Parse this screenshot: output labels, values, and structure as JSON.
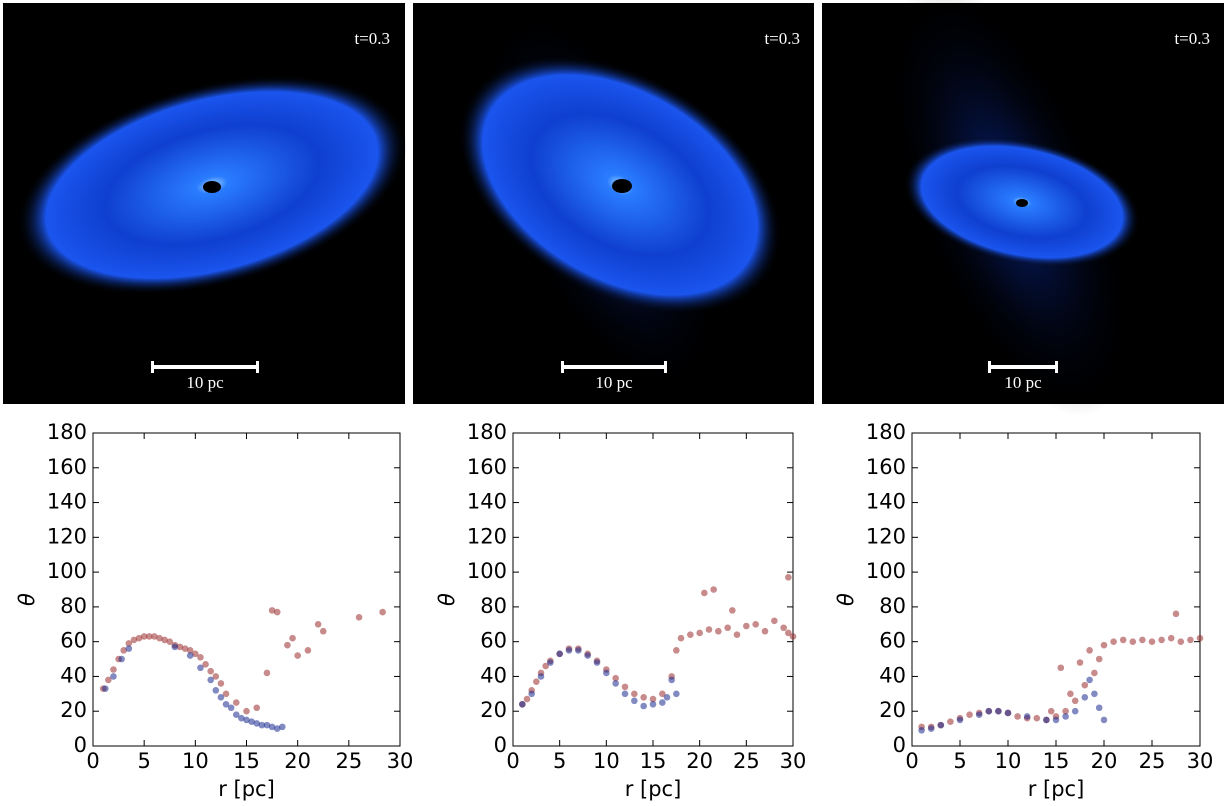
{
  "images": [
    {
      "time": "t=0.3",
      "scale": "10 pc"
    },
    {
      "time": "t=0.3",
      "scale": "10 pc"
    },
    {
      "time": "t=0.3",
      "scale": "10 pc"
    }
  ],
  "chart_data": [
    {
      "type": "scatter",
      "x_label": "r [pc]",
      "y_label": "θ",
      "xlim": [
        0,
        30
      ],
      "ylim": [
        0,
        180
      ],
      "xticks": [
        0,
        5,
        10,
        15,
        20,
        25,
        30
      ],
      "yticks": [
        0,
        20,
        40,
        60,
        80,
        100,
        120,
        140,
        160,
        180
      ],
      "series": [
        {
          "color": "#9b2b2b",
          "x": [
            1,
            1.5,
            2,
            2.5,
            3,
            3.5,
            4,
            4.5,
            5,
            5.5,
            6,
            6.5,
            7,
            7.5,
            8,
            8.5,
            9,
            9.5,
            10,
            10.5,
            11,
            11.5,
            12,
            12.5,
            13,
            14,
            15,
            16,
            17,
            17.5,
            18,
            19,
            19.5,
            20,
            21,
            22,
            22.5,
            26,
            28.3
          ],
          "values": [
            33,
            38,
            44,
            50,
            55,
            59,
            61,
            62,
            63,
            63,
            63,
            62,
            61,
            60,
            58,
            57,
            56,
            55,
            53,
            51,
            47,
            43,
            40,
            36,
            30,
            25,
            20,
            22,
            42,
            78,
            77,
            58,
            62,
            52,
            55,
            70,
            66,
            74,
            77
          ]
        },
        {
          "color": "#1c2a8f",
          "x": [
            1.2,
            2,
            2.8,
            3.5,
            8,
            9.5,
            10.5,
            11.5,
            12,
            12.5,
            13,
            13.5,
            14,
            14.5,
            15,
            15.5,
            16,
            16.5,
            17,
            17.5,
            18,
            18.5
          ],
          "values": [
            33,
            40,
            50,
            56,
            57,
            52,
            45,
            38,
            32,
            28,
            24,
            22,
            18,
            16,
            15,
            14,
            13,
            12,
            12,
            11,
            10,
            11
          ]
        }
      ]
    },
    {
      "type": "scatter",
      "x_label": "r [pc]",
      "y_label": "θ",
      "xlim": [
        0,
        30
      ],
      "ylim": [
        0,
        180
      ],
      "xticks": [
        0,
        5,
        10,
        15,
        20,
        25,
        30
      ],
      "yticks": [
        0,
        20,
        40,
        60,
        80,
        100,
        120,
        140,
        160,
        180
      ],
      "series": [
        {
          "color": "#9b2b2b",
          "x": [
            1,
            1.5,
            2,
            2.5,
            3,
            3.5,
            4,
            5,
            6,
            7,
            8,
            9,
            10,
            11,
            12,
            13,
            14,
            15,
            16,
            17,
            17.5,
            18,
            19,
            20,
            21,
            22,
            23,
            24,
            25,
            26,
            27,
            28,
            29,
            29.5,
            30,
            20.5,
            21.5,
            23.5,
            29.5
          ],
          "values": [
            24,
            27,
            32,
            37,
            42,
            46,
            49,
            53,
            56,
            56,
            53,
            49,
            44,
            39,
            34,
            30,
            28,
            27,
            30,
            40,
            55,
            62,
            64,
            65,
            67,
            66,
            68,
            64,
            69,
            70,
            66,
            72,
            68,
            65,
            63,
            88,
            90,
            78,
            97
          ]
        },
        {
          "color": "#1c2a8f",
          "x": [
            1,
            2,
            3,
            4,
            5,
            6,
            7,
            8,
            9,
            10,
            11,
            12,
            13,
            14,
            15,
            16,
            16.5,
            17,
            17.5
          ],
          "values": [
            24,
            30,
            40,
            48,
            53,
            55,
            55,
            52,
            48,
            42,
            36,
            30,
            26,
            23,
            24,
            25,
            28,
            38,
            30
          ]
        }
      ]
    },
    {
      "type": "scatter",
      "x_label": "r [pc]",
      "y_label": "θ",
      "xlim": [
        0,
        30
      ],
      "ylim": [
        0,
        180
      ],
      "xticks": [
        0,
        5,
        10,
        15,
        20,
        25,
        30
      ],
      "yticks": [
        0,
        20,
        40,
        60,
        80,
        100,
        120,
        140,
        160,
        180
      ],
      "series": [
        {
          "color": "#9b2b2b",
          "x": [
            1,
            2,
            3,
            4,
            5,
            6,
            7,
            8,
            9,
            10,
            11,
            12,
            13,
            14,
            15,
            15.5,
            16,
            17,
            18,
            19,
            19.5,
            20,
            21,
            22,
            23,
            24,
            25,
            26,
            27,
            27.5,
            28,
            29,
            30,
            17.5,
            18.5,
            14.5,
            16.5
          ],
          "values": [
            11,
            11,
            12,
            14,
            16,
            18,
            19,
            20,
            20,
            19,
            17,
            16,
            16,
            15,
            17,
            45,
            20,
            26,
            35,
            42,
            50,
            58,
            60,
            61,
            60,
            61,
            60,
            61,
            62,
            76,
            60,
            61,
            62,
            48,
            55,
            20,
            30
          ]
        },
        {
          "color": "#1c2a8f",
          "x": [
            1,
            2,
            3,
            5,
            7,
            8,
            9,
            10,
            12,
            14,
            15,
            16,
            17,
            18,
            18.5,
            19,
            19.5,
            20
          ],
          "values": [
            9,
            10,
            12,
            15,
            18,
            20,
            20,
            19,
            17,
            15,
            15,
            17,
            20,
            28,
            38,
            30,
            22,
            15
          ]
        }
      ]
    }
  ]
}
